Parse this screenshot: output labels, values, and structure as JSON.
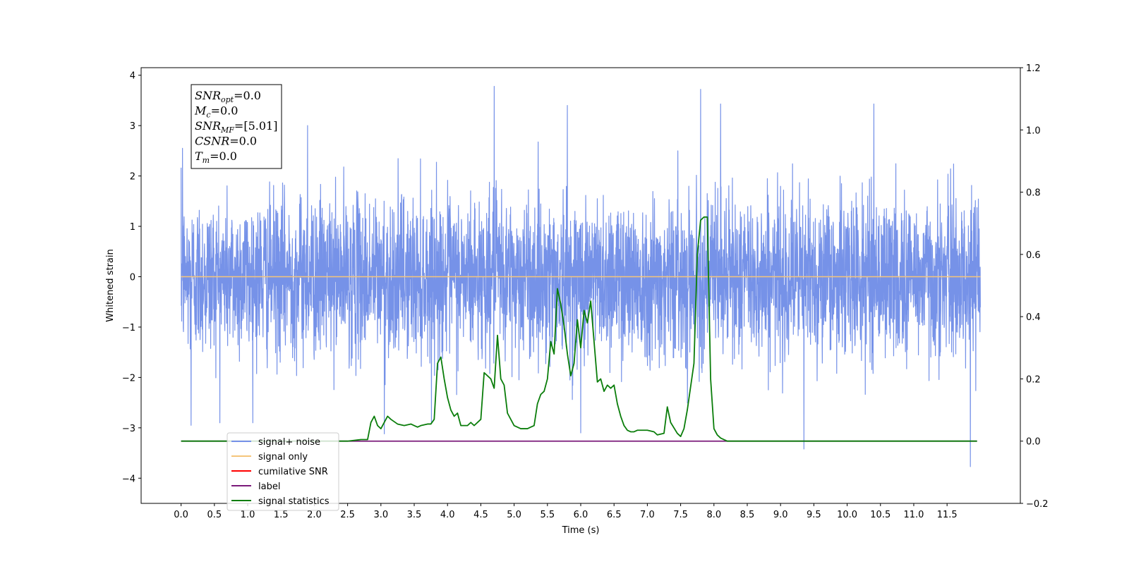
{
  "chart_data": {
    "type": "line",
    "xlabel": "Time (s)",
    "ylabel": "Whitened strain",
    "xlim": [
      -0.6,
      12.6
    ],
    "ylim": [
      -4.5,
      4.15
    ],
    "y2lim": [
      -0.2,
      1.2
    ],
    "x_ticks": [
      "0.0",
      "0.5",
      "1.0",
      "1.5",
      "2.0",
      "2.5",
      "3.0",
      "3.5",
      "4.0",
      "4.5",
      "5.0",
      "5.5",
      "6.0",
      "6.5",
      "7.0",
      "7.5",
      "8.0",
      "8.5",
      "9.0",
      "9.5",
      "10.0",
      "10.5",
      "11.0",
      "11.5"
    ],
    "y_ticks": [
      "4",
      "3",
      "2",
      "1",
      "0",
      "−1",
      "−2",
      "−3",
      "−4"
    ],
    "y2_ticks": [
      "1.2",
      "1.0",
      "0.8",
      "0.6",
      "0.4",
      "0.2",
      "0.0",
      "−0.2"
    ],
    "y2_tick_values": [
      1.2,
      1.0,
      0.8,
      0.6,
      0.4,
      0.2,
      0.0,
      -0.2
    ],
    "noise_band": {
      "x_range": [
        0.0,
        12.0
      ],
      "sigma": 1.0,
      "peaks": [
        {
          "x": 0.02,
          "y": 2.55
        },
        {
          "x": 4.7,
          "y": 3.78
        },
        {
          "x": 7.8,
          "y": 3.72
        },
        {
          "x": 8.1,
          "y": 3.43
        },
        {
          "x": 10.4,
          "y": 3.43
        },
        {
          "x": 5.8,
          "y": 3.4
        },
        {
          "x": 1.9,
          "y": 3.0
        },
        {
          "x": 3.05,
          "y": 3.6
        }
      ],
      "troughs": [
        {
          "x": 9.35,
          "y": -3.42
        },
        {
          "x": 11.85,
          "y": -3.77
        },
        {
          "x": 3.05,
          "y": -3.12
        },
        {
          "x": 6.0,
          "y": -3.1
        },
        {
          "x": 0.15,
          "y": -2.95
        }
      ]
    },
    "stats_box": {
      "lines": [
        {
          "sym": "SNR",
          "sub": "opt",
          "val": "=0.0"
        },
        {
          "sym": "M",
          "sub": "c",
          "val": "=0.0"
        },
        {
          "sym": "SNR",
          "sub": "MF",
          "val": "=[5.01]"
        },
        {
          "sym": "CSNR",
          "sub": "",
          "val": "=0.0"
        },
        {
          "sym": "T",
          "sub": "m",
          "val": "=0.0"
        }
      ]
    },
    "series": [
      {
        "name": "signal+ noise",
        "color": "#7692e8",
        "axis": "left"
      },
      {
        "name": "signal only",
        "color": "#f5c57a",
        "axis": "left",
        "y": 0
      },
      {
        "name": "cumilative SNR",
        "color": "#ff0000",
        "axis": "right"
      },
      {
        "name": "label",
        "color": "#7b1a7a",
        "axis": "right",
        "y": 0
      },
      {
        "name": "signal statistics",
        "color": "#0a7d0a",
        "axis": "right",
        "x": [
          0.0,
          2.5,
          2.7,
          2.8,
          2.85,
          2.9,
          2.95,
          3.0,
          3.05,
          3.1,
          3.15,
          3.25,
          3.35,
          3.45,
          3.5,
          3.55,
          3.6,
          3.7,
          3.75,
          3.8,
          3.85,
          3.9,
          3.95,
          4.0,
          4.05,
          4.1,
          4.15,
          4.2,
          4.3,
          4.35,
          4.4,
          4.5,
          4.55,
          4.65,
          4.7,
          4.75,
          4.8,
          4.85,
          4.9,
          5.0,
          5.1,
          5.2,
          5.25,
          5.3,
          5.35,
          5.4,
          5.45,
          5.5,
          5.55,
          5.6,
          5.65,
          5.7,
          5.75,
          5.8,
          5.85,
          5.9,
          5.95,
          6.0,
          6.05,
          6.1,
          6.15,
          6.2,
          6.25,
          6.3,
          6.35,
          6.4,
          6.45,
          6.5,
          6.55,
          6.6,
          6.65,
          6.7,
          6.75,
          6.8,
          6.85,
          6.9,
          7.0,
          7.1,
          7.15,
          7.25,
          7.3,
          7.35,
          7.45,
          7.5,
          7.55,
          7.6,
          7.7,
          7.75,
          7.8,
          7.85,
          7.9,
          7.95,
          8.0,
          8.05,
          8.1,
          8.15,
          8.2,
          8.25,
          8.3,
          8.35,
          8.45,
          8.5,
          9.0,
          11.0,
          11.95
        ],
        "y": [
          0.0,
          0.0,
          0.005,
          0.005,
          0.06,
          0.08,
          0.05,
          0.04,
          0.06,
          0.08,
          0.07,
          0.055,
          0.05,
          0.055,
          0.05,
          0.045,
          0.05,
          0.055,
          0.055,
          0.07,
          0.25,
          0.27,
          0.2,
          0.14,
          0.1,
          0.08,
          0.09,
          0.05,
          0.05,
          0.06,
          0.05,
          0.07,
          0.22,
          0.2,
          0.17,
          0.34,
          0.2,
          0.18,
          0.09,
          0.05,
          0.04,
          0.04,
          0.045,
          0.05,
          0.12,
          0.15,
          0.16,
          0.2,
          0.32,
          0.28,
          0.49,
          0.44,
          0.37,
          0.28,
          0.21,
          0.25,
          0.39,
          0.3,
          0.42,
          0.38,
          0.45,
          0.32,
          0.19,
          0.2,
          0.16,
          0.18,
          0.17,
          0.18,
          0.12,
          0.08,
          0.05,
          0.035,
          0.03,
          0.03,
          0.035,
          0.035,
          0.035,
          0.03,
          0.02,
          0.025,
          0.11,
          0.06,
          0.025,
          0.015,
          0.04,
          0.1,
          0.25,
          0.6,
          0.71,
          0.72,
          0.72,
          0.2,
          0.04,
          0.02,
          0.01,
          0.005,
          0.0,
          0.0,
          0.0,
          0.0,
          0.0,
          0.0,
          0.0,
          0.0,
          0.0
        ]
      }
    ],
    "legend_position": "lower-left"
  }
}
